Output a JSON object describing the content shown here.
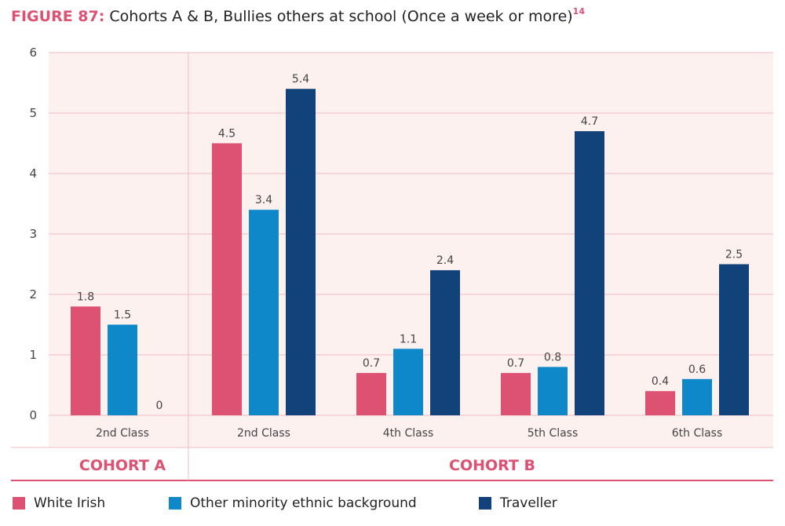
{
  "title": {
    "figure_label": "FIGURE 87:",
    "text": "Cohorts A & B, Bullies others at school (Once a week or more)",
    "footnote": "14"
  },
  "colors": {
    "white_irish": "#dd5173",
    "other_minority": "#0e88c9",
    "traveller": "#12427a",
    "plot_bg": "#fdf1f0",
    "grid": "#f0bcc2",
    "accent": "#dd5173"
  },
  "chart_data": {
    "type": "bar",
    "title": "Cohorts A & B, Bullies others at school (Once a week or more)",
    "xlabel": "",
    "ylabel": "",
    "ylim": [
      0,
      6
    ],
    "yticks": [
      "0",
      "1",
      "2",
      "3",
      "4",
      "5",
      "6"
    ],
    "grid": true,
    "legend_position": "bottom",
    "groups": [
      {
        "label": "COHORT A",
        "categories": [
          "2nd Class"
        ]
      },
      {
        "label": "COHORT B",
        "categories": [
          "2nd Class",
          "4th Class",
          "5th Class",
          "6th Class"
        ]
      }
    ],
    "categories": [
      "2nd Class",
      "2nd Class",
      "4th Class",
      "5th Class",
      "6th Class"
    ],
    "series": [
      {
        "name": "White Irish",
        "values": [
          1.8,
          4.5,
          0.7,
          0.7,
          0.4
        ],
        "labels": [
          "1.8",
          "4.5",
          "0.7",
          "0.7",
          "0.4"
        ]
      },
      {
        "name": "Other minority ethnic background",
        "values": [
          1.5,
          3.4,
          1.1,
          0.8,
          0.6
        ],
        "labels": [
          "1.5",
          "3.4",
          "1.1",
          "0.8",
          "0.6"
        ]
      },
      {
        "name": "Traveller",
        "values": [
          0,
          5.4,
          2.4,
          4.7,
          2.5
        ],
        "labels": [
          "0",
          "5.4",
          "2.4",
          "4.7",
          "2.5"
        ]
      }
    ]
  }
}
